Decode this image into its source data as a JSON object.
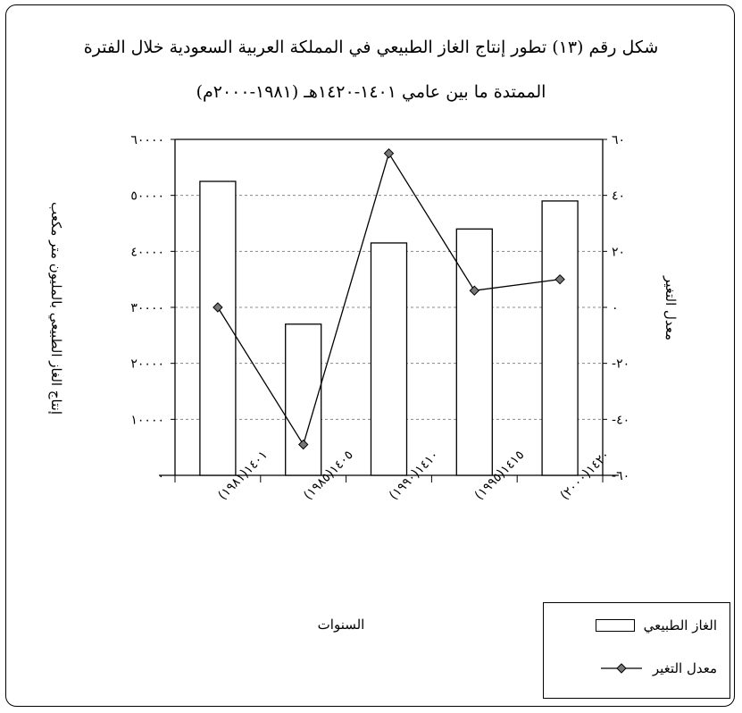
{
  "title": {
    "line1": "شكل رقم (١٣) تطور إنتاج الغاز الطبيعي في المملكة العربية السعودية خلال الفترة",
    "line2": "الممتدة ما بين عامي ١٤٠١-١٤٢٠هـ (١٩٨١-٢٠٠٠م)"
  },
  "legend": {
    "bar_label": "الغاز الطبيعي",
    "line_label": "معدل التغير"
  },
  "chart_data": {
    "type": "bar",
    "title": "شكل رقم (١٣) تطور إنتاج الغاز الطبيعي في المملكة العربية السعودية خلال الفترة الممتدة ما بين عامي ١٤٠١-١٤٢٠هـ (١٩٨١-٢٠٠٠م)",
    "xlabel": "السنوات",
    "ylabel": "إنتاج الغاز الطبيعي بالمليون متر مكعب",
    "y2label": "معدل التغير",
    "categories": [
      "١٤٠١(١٩٨١)",
      "١٤٠٥(١٩٨٥)",
      "١٤١٠(١٩٩٠)",
      "١٤١٥(١٩٩٥)",
      "١٤٢٠(٢٠٠٠)"
    ],
    "ylim": [
      0,
      60000
    ],
    "yticks": [
      0,
      10000,
      20000,
      30000,
      40000,
      50000,
      60000
    ],
    "ytick_labels": [
      "٠",
      "١٠٠٠٠",
      "٢٠٠٠٠",
      "٣٠٠٠٠",
      "٤٠٠٠٠",
      "٥٠٠٠٠",
      "٦٠٠٠٠"
    ],
    "y2lim": [
      -60,
      60
    ],
    "y2ticks": [
      -60,
      -40,
      -20,
      0,
      20,
      40,
      60
    ],
    "y2tick_labels": [
      "-٦٠",
      "-٤٠",
      "-٢٠",
      "٠",
      "٢٠",
      "٤٠",
      "٦٠"
    ],
    "grid": true,
    "legend_position": "bottom-right",
    "series": [
      {
        "name": "الغاز الطبيعي",
        "type": "bar",
        "axis": "left",
        "values": [
          52500,
          27000,
          41500,
          44000,
          49000
        ]
      },
      {
        "name": "معدل التغير",
        "type": "line",
        "axis": "right",
        "marker": "diamond",
        "values": [
          0,
          -49,
          55,
          6,
          10
        ]
      }
    ]
  }
}
